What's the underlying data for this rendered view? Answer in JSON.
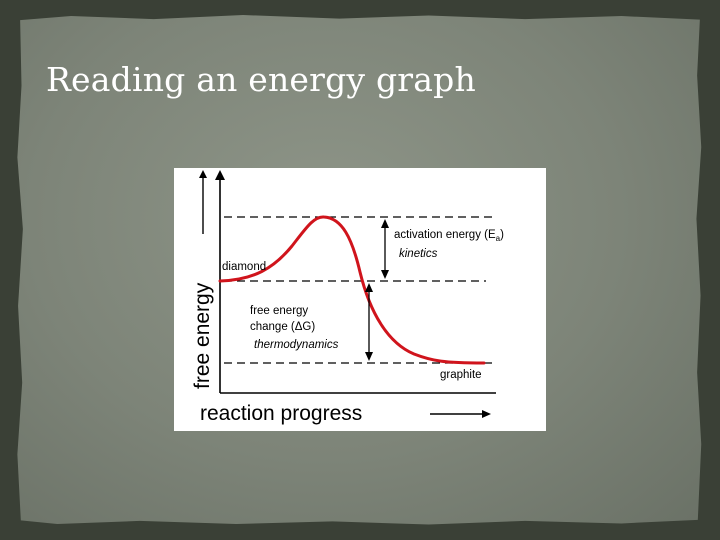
{
  "slide": {
    "title": "Reading an energy graph"
  },
  "diagram": {
    "y_axis_label": "free energy",
    "x_axis_label": "reaction progress",
    "labels": {
      "diamond": "diamond",
      "graphite": "graphite",
      "activation_energy": "activation energy (E",
      "activation_energy_subscript": "a",
      "activation_energy_close": ")",
      "kinetics": "kinetics",
      "free_energy_change_line1": "free energy",
      "free_energy_change_line2": "change (ΔG)",
      "thermodynamics": "thermodynamics"
    },
    "colors": {
      "curve": "#d0141c",
      "lines": "#000000",
      "background": "#ffffff"
    }
  }
}
